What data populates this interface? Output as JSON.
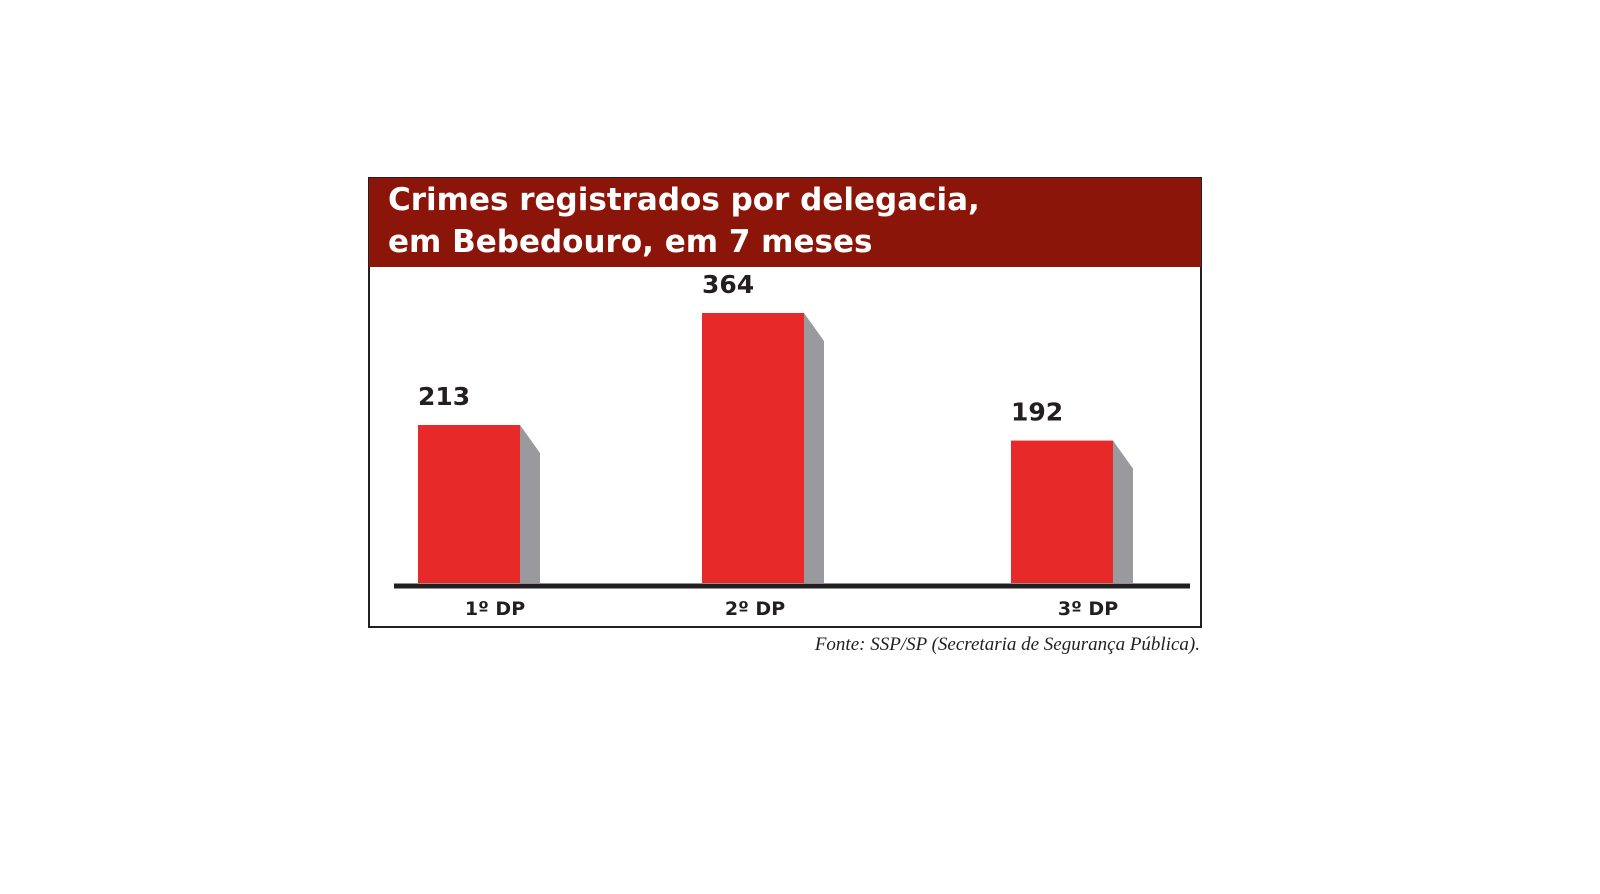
{
  "chart_data": {
    "type": "bar",
    "title": [
      "Crimes registrados por delegacia,",
      "em Bebedouro, em 7 meses"
    ],
    "categories": [
      "1º DP",
      "2º DP",
      "3º DP"
    ],
    "values": [
      213,
      364,
      192
    ],
    "color": "#e8292a",
    "side_color": "#9a9a9e",
    "header_color": "#8b1509",
    "source": "Fonte: SSP/SP (Secretaria de Segurança Pública)."
  }
}
